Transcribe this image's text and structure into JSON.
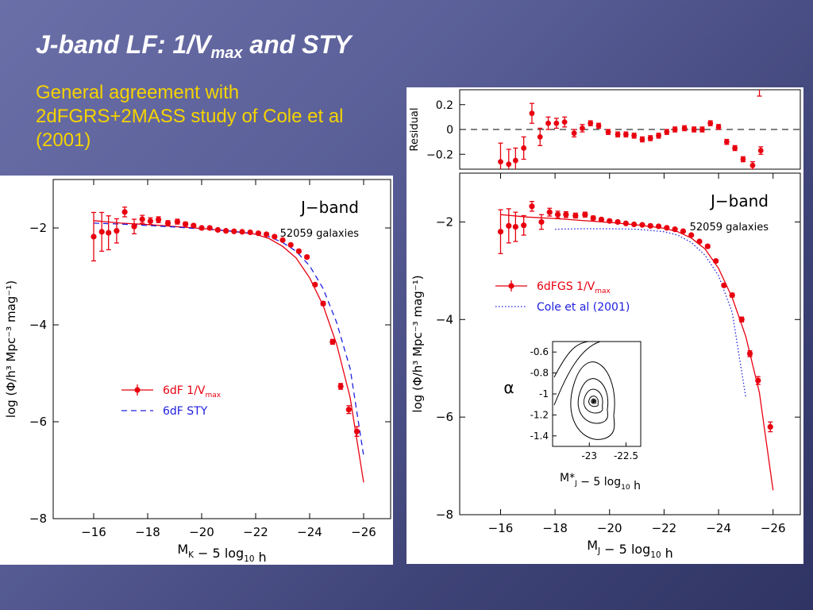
{
  "slide": {
    "title_main": "J-band LF: 1/V",
    "title_sub": "max",
    "title_rest": " and STY",
    "subtitle": "General agreement with 2dFGRS+2MASS study of Cole et al (2001)"
  },
  "colors": {
    "background_top": "#6b6fa8",
    "background_bottom": "#2f3464",
    "title": "#ffffff",
    "subtitle": "#f5d300",
    "data_red": "#e8000f",
    "model_blue": "#2020e0"
  },
  "chart_data": [
    {
      "type": "scatter",
      "panel": "left",
      "band_label": "J−band",
      "count_label": "52059 galaxies",
      "xlabel_main": "M",
      "xlabel_sub": "K",
      "xlabel_rest": " − 5 log",
      "xlabel_sub2": "10",
      "xlabel_end": " h",
      "ylabel": "log (Φ/h³ Mpc⁻³ mag⁻¹)",
      "xlim": [
        -14.5,
        -27.0
      ],
      "ylim": [
        -8.0,
        -1.0
      ],
      "xticks": [
        -16,
        -18,
        -20,
        -22,
        -24,
        -26
      ],
      "xtick_labels": [
        "−16",
        "−18",
        "−20",
        "−22",
        "−24",
        "−26"
      ],
      "yticks": [
        -2,
        -4,
        -6,
        -8
      ],
      "ytick_labels": [
        "−2",
        "−4",
        "−6",
        "−8"
      ],
      "grid": false,
      "legend": [
        {
          "label": "6dF  1/V",
          "sub": "max",
          "style": "red-points-line"
        },
        {
          "label": "6dF  STY",
          "sub": "",
          "style": "blue-dashed"
        }
      ],
      "series": [
        {
          "name": "6dF 1/Vmax",
          "x": [
            -16.0,
            -16.3,
            -16.55,
            -16.85,
            -17.15,
            -17.5,
            -17.8,
            -18.1,
            -18.4,
            -18.75,
            -19.1,
            -19.4,
            -19.7,
            -20.0,
            -20.3,
            -20.6,
            -20.9,
            -21.2,
            -21.5,
            -21.8,
            -22.1,
            -22.4,
            -22.7,
            -23.0,
            -23.3,
            -23.6,
            -23.9,
            -24.2,
            -24.5,
            -24.85,
            -25.15,
            -25.45,
            -25.75
          ],
          "y": [
            -2.18,
            -2.08,
            -2.1,
            -2.06,
            -1.67,
            -1.97,
            -1.82,
            -1.86,
            -1.83,
            -1.9,
            -1.87,
            -1.92,
            -1.95,
            -2.0,
            -2.0,
            -2.04,
            -2.06,
            -2.07,
            -2.08,
            -2.09,
            -2.11,
            -2.13,
            -2.18,
            -2.25,
            -2.35,
            -2.48,
            -2.6,
            -3.17,
            -3.56,
            -4.35,
            -5.27,
            -5.75,
            -6.2
          ],
          "yerr": [
            0.5,
            0.4,
            0.35,
            0.25,
            0.1,
            0.15,
            0.08,
            0.07,
            0.06,
            0.05,
            0.05,
            0.04,
            0.03,
            0.03,
            0.03,
            0.02,
            0.02,
            0.02,
            0.02,
            0.02,
            0.02,
            0.02,
            0.02,
            0.02,
            0.02,
            0.03,
            0.03,
            0.03,
            0.04,
            0.05,
            0.06,
            0.08,
            0.1
          ]
        },
        {
          "name": "6dF 1/Vmax fit",
          "x": [
            -16.0,
            -17.0,
            -18.0,
            -19.0,
            -20.0,
            -21.0,
            -22.0,
            -22.5,
            -23.0,
            -23.5,
            -24.0,
            -24.5,
            -25.0,
            -25.5,
            -26.0
          ],
          "y": [
            -1.85,
            -1.9,
            -1.93,
            -1.97,
            -2.01,
            -2.06,
            -2.13,
            -2.22,
            -2.38,
            -2.62,
            -3.03,
            -3.6,
            -4.4,
            -5.5,
            -7.25
          ]
        },
        {
          "name": "6dF STY",
          "x": [
            -16.0,
            -17.0,
            -18.0,
            -19.0,
            -20.0,
            -21.0,
            -22.0,
            -22.5,
            -23.0,
            -23.5,
            -24.0,
            -24.5,
            -25.0,
            -25.5,
            -26.0
          ],
          "y": [
            -1.9,
            -1.92,
            -1.95,
            -1.98,
            -2.02,
            -2.06,
            -2.12,
            -2.18,
            -2.3,
            -2.48,
            -2.78,
            -3.25,
            -3.95,
            -4.9,
            -6.7
          ]
        }
      ]
    },
    {
      "type": "scatter",
      "panel": "right-residual",
      "ylabel": "Residual",
      "xlim": [
        -14.5,
        -27.0
      ],
      "ylim": [
        -0.32,
        0.32
      ],
      "yticks": [
        0.2,
        0,
        -0.2
      ],
      "ytick_labels": [
        "0.2",
        "0",
        "−0.2"
      ],
      "series": [
        {
          "name": "residual",
          "x": [
            -16.0,
            -16.3,
            -16.55,
            -16.85,
            -17.15,
            -17.45,
            -17.75,
            -18.05,
            -18.35,
            -18.7,
            -19.0,
            -19.3,
            -19.6,
            -19.95,
            -20.3,
            -20.6,
            -20.9,
            -21.2,
            -21.5,
            -21.8,
            -22.1,
            -22.4,
            -22.75,
            -23.1,
            -23.4,
            -23.7,
            -24.0,
            -24.3,
            -24.6,
            -24.9,
            -25.25,
            -25.55
          ],
          "y": [
            -0.26,
            -0.28,
            -0.25,
            -0.15,
            0.13,
            -0.06,
            0.05,
            0.05,
            0.06,
            -0.03,
            0.01,
            0.05,
            0.03,
            -0.02,
            -0.04,
            -0.04,
            -0.05,
            -0.08,
            -0.07,
            -0.05,
            -0.02,
            0.0,
            0.01,
            0.0,
            0.0,
            0.05,
            0.02,
            -0.1,
            -0.15,
            -0.24,
            -0.29,
            -0.17
          ],
          "yerr": [
            0.15,
            0.12,
            0.1,
            0.09,
            0.08,
            0.07,
            0.05,
            0.04,
            0.04,
            0.03,
            0.03,
            0.02,
            0.02,
            0.02,
            0.02,
            0.02,
            0.02,
            0.02,
            0.02,
            0.02,
            0.02,
            0.02,
            0.02,
            0.02,
            0.02,
            0.02,
            0.02,
            0.02,
            0.02,
            0.02,
            0.03,
            0.03
          ]
        }
      ]
    },
    {
      "type": "scatter",
      "panel": "right-main",
      "band_label": "J−band",
      "count_label": "52059 galaxies",
      "xlabel_main": "M",
      "xlabel_sub": "J",
      "xlabel_rest": " − 5 log",
      "xlabel_sub2": "10",
      "xlabel_end": " h",
      "ylabel": "log (Φ/h³ Mpc⁻³ mag⁻¹)",
      "xlim": [
        -14.5,
        -27.0
      ],
      "ylim": [
        -8.0,
        -1.0
      ],
      "xticks": [
        -16,
        -18,
        -20,
        -22,
        -24,
        -26
      ],
      "xtick_labels": [
        "−16",
        "−18",
        "−20",
        "−22",
        "−24",
        "−26"
      ],
      "yticks": [
        -2,
        -4,
        -6,
        -8
      ],
      "ytick_labels": [
        "−2",
        "−4",
        "−6",
        "−8"
      ],
      "grid": false,
      "legend": [
        {
          "label": "6dFGS  1/V",
          "sub": "max",
          "style": "red-points-line"
        },
        {
          "label": "Cole  et  al  (2001)",
          "sub": "",
          "style": "blue-dotted"
        }
      ],
      "series": [
        {
          "name": "6dFGS 1/Vmax",
          "x": [
            -16.0,
            -16.3,
            -16.55,
            -16.85,
            -17.15,
            -17.5,
            -17.8,
            -18.1,
            -18.4,
            -18.75,
            -19.1,
            -19.4,
            -19.7,
            -20.0,
            -20.3,
            -20.6,
            -20.9,
            -21.2,
            -21.5,
            -21.8,
            -22.1,
            -22.4,
            -22.7,
            -23.0,
            -23.3,
            -23.6,
            -23.9,
            -24.2,
            -24.5,
            -24.85,
            -25.15,
            -25.45,
            -25.9
          ],
          "y": [
            -2.2,
            -2.08,
            -2.1,
            -2.07,
            -1.68,
            -2.0,
            -1.8,
            -1.85,
            -1.85,
            -1.87,
            -1.85,
            -1.92,
            -1.95,
            -1.98,
            -2.0,
            -2.03,
            -2.05,
            -2.06,
            -2.08,
            -2.09,
            -2.12,
            -2.15,
            -2.19,
            -2.27,
            -2.4,
            -2.5,
            -2.8,
            -3.3,
            -3.5,
            -4.0,
            -4.7,
            -5.25,
            -6.2
          ],
          "yerr": [
            0.45,
            0.35,
            0.3,
            0.2,
            0.1,
            0.15,
            0.08,
            0.07,
            0.06,
            0.05,
            0.05,
            0.04,
            0.03,
            0.03,
            0.03,
            0.02,
            0.02,
            0.02,
            0.02,
            0.02,
            0.02,
            0.02,
            0.02,
            0.02,
            0.02,
            0.03,
            0.03,
            0.03,
            0.04,
            0.05,
            0.06,
            0.08,
            0.1
          ]
        },
        {
          "name": "6dFGS 1/Vmax fit",
          "x": [
            -16.0,
            -17.0,
            -18.0,
            -19.0,
            -20.0,
            -21.0,
            -22.0,
            -22.5,
            -23.0,
            -23.5,
            -24.0,
            -24.5,
            -25.0,
            -25.5,
            -26.0
          ],
          "y": [
            -1.85,
            -1.9,
            -1.93,
            -1.97,
            -2.01,
            -2.06,
            -2.13,
            -2.2,
            -2.33,
            -2.55,
            -2.95,
            -3.55,
            -4.35,
            -5.5,
            -7.5
          ]
        },
        {
          "name": "Cole et al (2001)",
          "x": [
            -18.0,
            -19.0,
            -20.0,
            -21.0,
            -22.0,
            -22.5,
            -23.0,
            -23.5,
            -24.0,
            -24.5,
            -25.0
          ],
          "y": [
            -2.15,
            -2.14,
            -2.14,
            -2.15,
            -2.2,
            -2.27,
            -2.42,
            -2.68,
            -3.1,
            -3.85,
            -5.6
          ]
        }
      ]
    },
    {
      "type": "scatter",
      "panel": "inset",
      "xlabel": "M*J − 5 log10 h",
      "xlabel_main": "M*",
      "xlabel_sub": "J",
      "xlabel_rest": " − 5 log",
      "xlabel_sub2": "10",
      "xlabel_end": " h",
      "ylabel": "α",
      "xlim": [
        -23.5,
        -22.3
      ],
      "ylim": [
        -1.5,
        -0.5
      ],
      "xticks": [
        -23,
        -22.5
      ],
      "xtick_labels": [
        "-23",
        "-22.5"
      ],
      "yticks": [
        -0.6,
        -0.8,
        -1.0,
        -1.2,
        -1.4
      ],
      "ytick_labels": [
        "-0.6",
        "-0.8",
        "-1",
        "-1.2",
        "-1.4"
      ],
      "best_fit": {
        "x": -22.94,
        "y": -1.07
      }
    }
  ]
}
